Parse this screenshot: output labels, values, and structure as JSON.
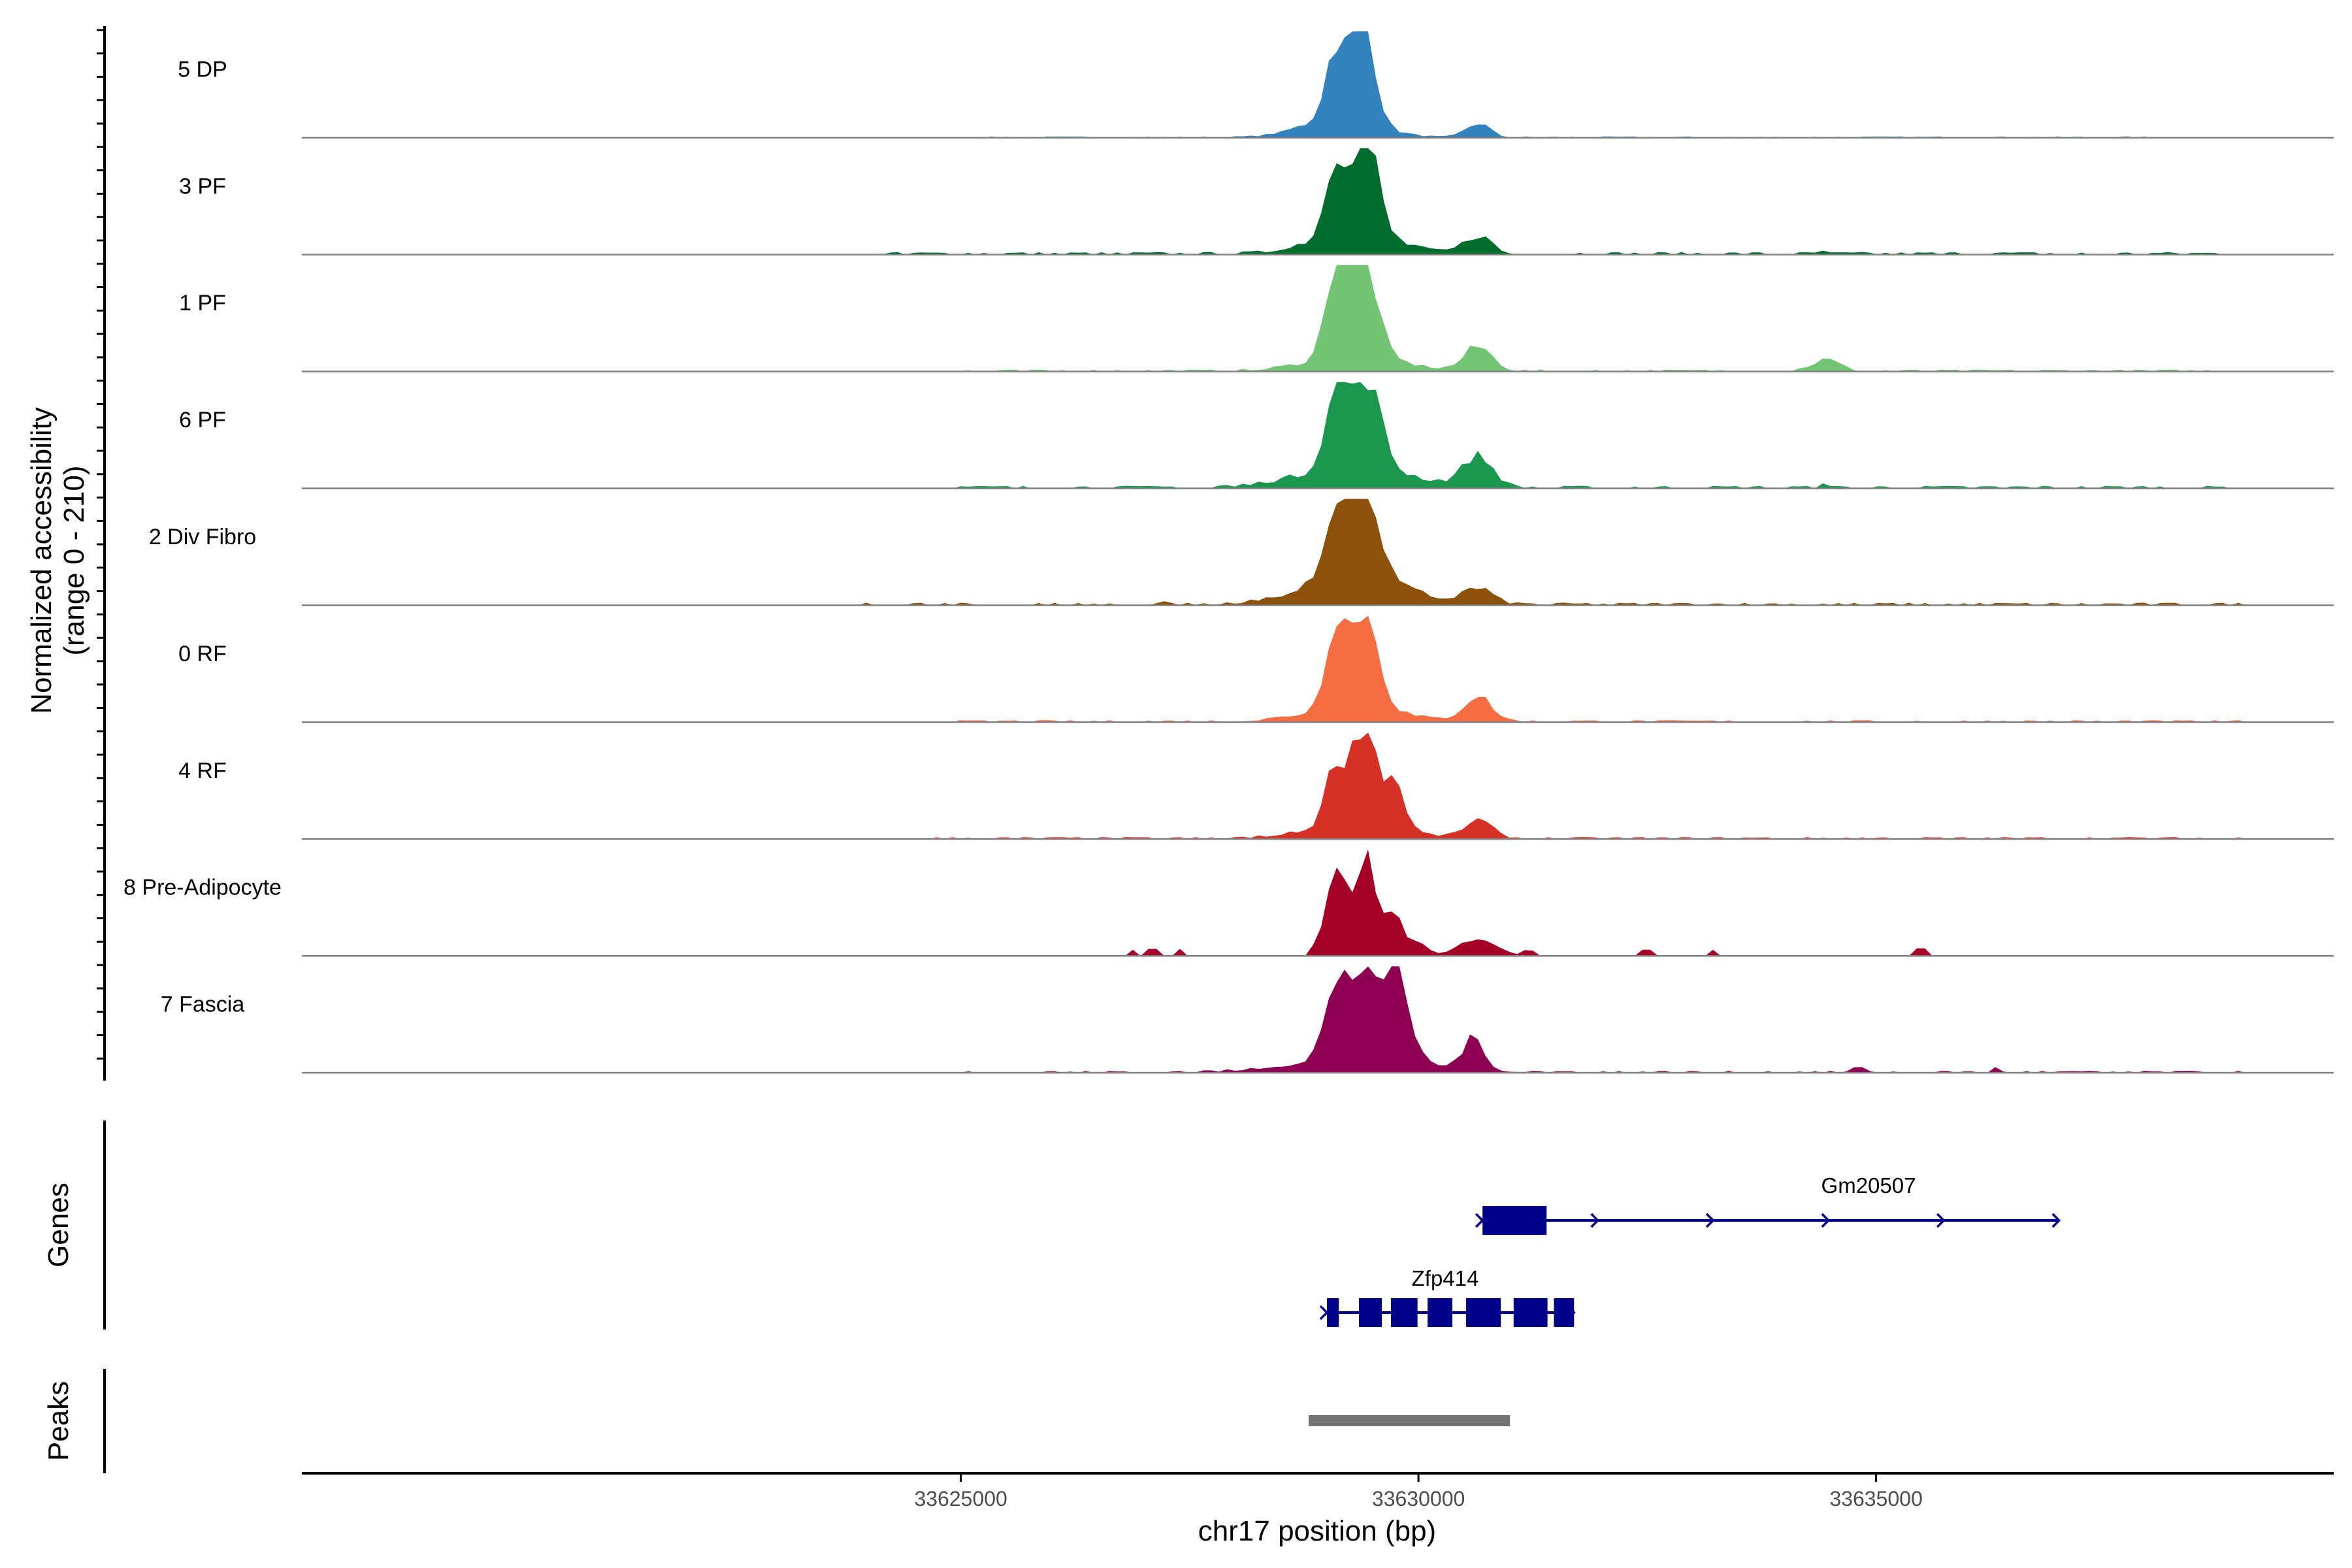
{
  "chart_data": {
    "type": "area",
    "title": "",
    "region": {
      "chromosome": "chr17",
      "start": 33617800,
      "end": 33640000
    },
    "ylabel_line1": "Normalized accessibility",
    "ylabel_line2": "(range 0 - 210)",
    "ylim": [
      0,
      210
    ],
    "xlabel": "chr17 position (bp)",
    "xticks": [
      33625000,
      33630000,
      33635000
    ],
    "xtick_labels": [
      "33625000",
      "33630000",
      "33635000"
    ],
    "genes_label": "Genes",
    "peaks_label": "Peaks",
    "series": [
      {
        "name": "5 DP",
        "color": "#3182BD",
        "peaks": [
          [
            33629100,
            140,
            110
          ],
          [
            33629400,
            205,
            120
          ],
          [
            33629150,
            40,
            400
          ],
          [
            33630650,
            28,
            130
          ]
        ],
        "noise_level": 2,
        "noise_range": [
          33625000,
          33638000
        ],
        "spikes": []
      },
      {
        "name": "3 PF",
        "color": "#006D2C",
        "peaks": [
          [
            33629100,
            150,
            110
          ],
          [
            33629420,
            205,
            130
          ],
          [
            33629300,
            45,
            450
          ],
          [
            33630650,
            35,
            150
          ]
        ],
        "noise_level": 4,
        "noise_range": [
          33624200,
          33639000
        ],
        "spikes": [
          [
            33634400,
            8
          ]
        ]
      },
      {
        "name": "1 PF",
        "color": "#74C476",
        "peaks": [
          [
            33629100,
            185,
            110
          ],
          [
            33629400,
            205,
            140
          ],
          [
            33629300,
            30,
            500
          ],
          [
            33630650,
            48,
            150
          ],
          [
            33634450,
            22,
            150
          ]
        ],
        "noise_level": 3,
        "noise_range": [
          33624500,
          33639000
        ],
        "spikes": []
      },
      {
        "name": "6 PF",
        "color": "#1A9850",
        "peaks": [
          [
            33629100,
            150,
            120
          ],
          [
            33629420,
            180,
            160
          ],
          [
            33629300,
            40,
            600
          ],
          [
            33630650,
            60,
            160
          ]
        ],
        "noise_level": 4,
        "noise_range": [
          33624500,
          33639000
        ],
        "spikes": [
          [
            33634400,
            10
          ]
        ]
      },
      {
        "name": "2 Div Fibro",
        "color": "#8C510A",
        "peaks": [
          [
            33629100,
            140,
            120
          ],
          [
            33629400,
            205,
            150
          ],
          [
            33629300,
            55,
            550
          ],
          [
            33630650,
            30,
            160
          ]
        ],
        "noise_level": 4,
        "noise_range": [
          33623900,
          33639000
        ],
        "spikes": [
          [
            33627200,
            8
          ]
        ]
      },
      {
        "name": "0 RF",
        "color": "#F46D43",
        "peaks": [
          [
            33629100,
            170,
            110
          ],
          [
            33629420,
            190,
            140
          ],
          [
            33629300,
            30,
            500
          ],
          [
            33630650,
            50,
            150
          ]
        ],
        "noise_level": 3,
        "noise_range": [
          33624500,
          33639000
        ],
        "spikes": []
      },
      {
        "name": "4 RF",
        "color": "#D73027",
        "peaks": [
          [
            33629100,
            120,
            110
          ],
          [
            33629420,
            205,
            130
          ],
          [
            33629750,
            90,
            100
          ],
          [
            33629300,
            30,
            500
          ],
          [
            33630650,
            35,
            150
          ]
        ],
        "noise_level": 3,
        "noise_range": [
          33624500,
          33639000
        ],
        "spikes": []
      },
      {
        "name": "8 Pre-Adipocyte",
        "color": "#A50026",
        "peaks": [
          [
            33629100,
            160,
            100
          ],
          [
            33629420,
            200,
            120
          ],
          [
            33629750,
            80,
            90
          ],
          [
            33630000,
            25,
            100
          ],
          [
            33630650,
            35,
            200
          ]
        ],
        "noise_level": 0,
        "noise_range": [
          33626800,
          33639000
        ],
        "spikes": [
          [
            33626900,
            12
          ],
          [
            33627100,
            14
          ],
          [
            33627400,
            14
          ],
          [
            33628900,
            15
          ],
          [
            33631200,
            10
          ],
          [
            33632500,
            12
          ],
          [
            33633200,
            12
          ],
          [
            33635500,
            15
          ]
        ]
      },
      {
        "name": "7 Fascia",
        "color": "#8E0152",
        "peaks": [
          [
            33629100,
            120,
            130
          ],
          [
            33629450,
            180,
            180
          ],
          [
            33629800,
            130,
            120
          ],
          [
            33630600,
            60,
            110
          ],
          [
            33629400,
            30,
            700
          ]
        ],
        "noise_level": 3,
        "noise_range": [
          33625000,
          33639000
        ],
        "spikes": [
          [
            33634800,
            8
          ],
          [
            33636300,
            8
          ]
        ]
      }
    ],
    "genes": [
      {
        "name": "Gm20507",
        "strand": "+",
        "start": 33630700,
        "end": 33637000,
        "exons": [
          [
            33630700,
            33631400
          ]
        ]
      },
      {
        "name": "Zfp414",
        "strand": "+",
        "start": 33629000,
        "end": 33631700,
        "exons": [
          [
            33629000,
            33629130
          ],
          [
            33629350,
            33629600
          ],
          [
            33629700,
            33629990
          ],
          [
            33630100,
            33630370
          ],
          [
            33630520,
            33630900
          ],
          [
            33631040,
            33631410
          ],
          [
            33631480,
            33631700
          ]
        ]
      }
    ],
    "peak_regions": [
      [
        33628800,
        33631000
      ]
    ]
  }
}
